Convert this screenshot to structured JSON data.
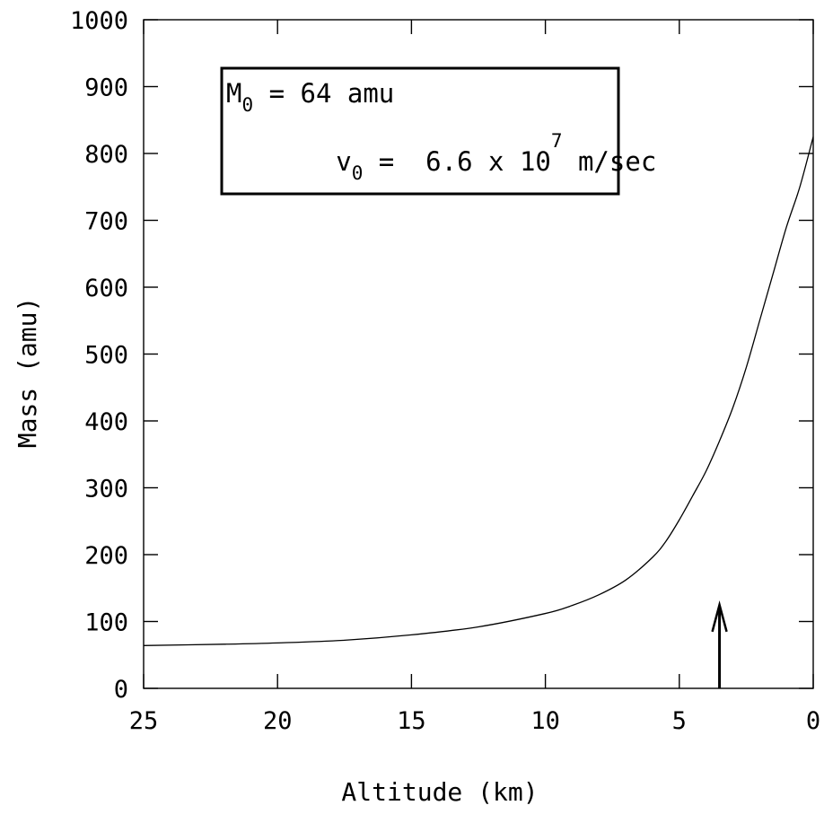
{
  "chart_data": {
    "type": "line",
    "xlabel": "Altitude (km)",
    "ylabel": "Mass (amu)",
    "xlim": [
      25,
      0
    ],
    "ylim": [
      0,
      1000
    ],
    "x_ticks": [
      25,
      20,
      15,
      10,
      5,
      0
    ],
    "y_ticks": [
      0,
      100,
      200,
      300,
      400,
      500,
      600,
      700,
      800,
      900,
      1000
    ],
    "x_tick_labels": [
      "25",
      "20",
      "15",
      "10",
      "5",
      "0"
    ],
    "y_tick_labels": [
      "0",
      "100",
      "200",
      "300",
      "400",
      "500",
      "600",
      "700",
      "800",
      "900",
      "1000"
    ],
    "grid": false,
    "series": [
      {
        "x": [
          25,
          22,
          20,
          17.5,
          15,
          12.5,
          10,
          9,
          8,
          7,
          6,
          5.5,
          5,
          4.5,
          4,
          3.5,
          3,
          2.5,
          2,
          1.5,
          1,
          0.5,
          0
        ],
        "y": [
          64,
          66,
          68,
          72,
          80,
          92,
          112,
          124,
          140,
          162,
          196,
          220,
          252,
          288,
          325,
          370,
          420,
          480,
          550,
          620,
          690,
          750,
          825
        ]
      }
    ],
    "legend": {
      "placement": "top-left",
      "line1": {
        "base": "M",
        "sub": "0",
        "text": " = 64 amu"
      },
      "line2": {
        "base": "v",
        "sub": "0",
        "pre": " =  6.6 x 10",
        "sup": "7",
        "post": " m/sec"
      }
    },
    "annotations": [
      {
        "type": "arrow",
        "x": 3.5,
        "y_from": 0,
        "y_to": 125,
        "direction": "up"
      }
    ]
  }
}
